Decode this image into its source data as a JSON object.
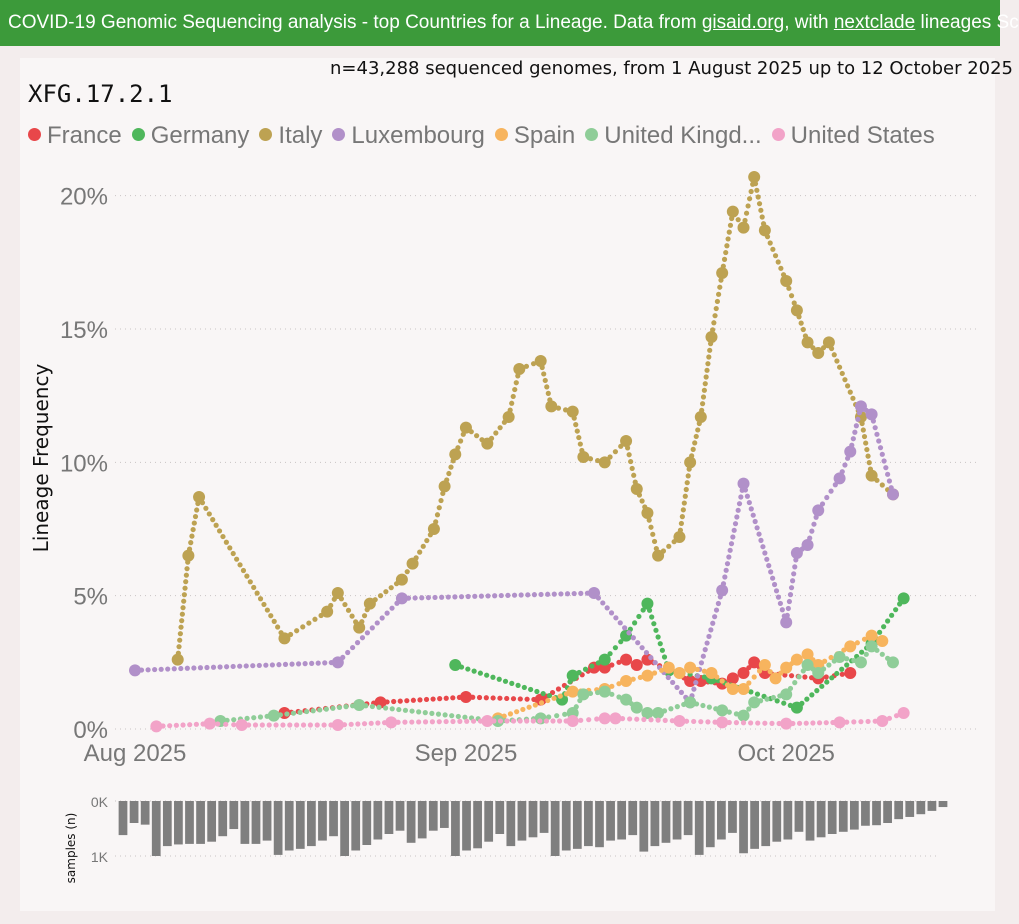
{
  "banner": {
    "pre": "COVID-19 Genomic Sequencing analysis - top Countries for a Lineage. Data from ",
    "link1": "gisaid.org",
    "mid": ", with ",
    "link2": "nextclade",
    "post": " lineages Sc"
  },
  "subtitle": "n=43,288 sequenced genomes, from 1 August 2025 up to 12 October 2025",
  "lineage": "XFG.17.2.1",
  "colors": {
    "France": "#e8474a",
    "Germany": "#4fb75c",
    "Italy": "#bda252",
    "Luxembourg": "#b190c9",
    "Spain": "#f7b45e",
    "United Kingdom": "#8fcd98",
    "United States": "#f2a3c8"
  },
  "legend": [
    {
      "label": "France",
      "color": "#e8474a"
    },
    {
      "label": "Germany",
      "color": "#4fb75c"
    },
    {
      "label": "Italy",
      "color": "#bda252"
    },
    {
      "label": "Luxembourg",
      "color": "#b190c9"
    },
    {
      "label": "Spain",
      "color": "#f7b45e"
    },
    {
      "label": "United Kingd...",
      "color": "#8fcd98"
    },
    {
      "label": "United States",
      "color": "#f2a3c8"
    }
  ],
  "chart_data": [
    {
      "type": "line",
      "title": "XFG.17.2.1",
      "xlabel": "",
      "ylabel": "Lineage Frequency",
      "x_unit": "days since 1 Aug 2025",
      "xlim": [
        0,
        74
      ],
      "ylim": [
        0,
        21
      ],
      "y_ticks": [
        0,
        5,
        10,
        15,
        20
      ],
      "y_tick_labels": [
        "0%",
        "5%",
        "10%",
        "15%",
        "20%"
      ],
      "x_ticks": [
        0,
        31,
        61
      ],
      "x_tick_labels": [
        "Aug 2025",
        "Sep 2025",
        "Oct 2025"
      ],
      "legend_position": "top",
      "series": [
        {
          "name": "France",
          "x": [
            14,
            23,
            31,
            38,
            43,
            44,
            46,
            47,
            48,
            52,
            53,
            55,
            56,
            57,
            58,
            59,
            64,
            67
          ],
          "y": [
            0.6,
            1.0,
            1.2,
            1.1,
            2.3,
            2.3,
            2.6,
            2.4,
            2.6,
            1.8,
            1.8,
            1.7,
            1.9,
            2.1,
            2.5,
            2.1,
            1.9,
            2.1
          ]
        },
        {
          "name": "Germany",
          "x": [
            30,
            40,
            41,
            44,
            46,
            48,
            50,
            54,
            62,
            69,
            72
          ],
          "y": [
            2.4,
            1.1,
            2.0,
            2.6,
            3.5,
            4.7,
            2.2,
            1.9,
            0.8,
            3.2,
            4.9
          ]
        },
        {
          "name": "Italy",
          "x": [
            4,
            5,
            6,
            14,
            18,
            19,
            21,
            22,
            25,
            26,
            28,
            29,
            30,
            31,
            33,
            35,
            36,
            38,
            39,
            41,
            42,
            44,
            46,
            47,
            48,
            49,
            51,
            52,
            53,
            54,
            55,
            56,
            57,
            58,
            59,
            61,
            62,
            63,
            64,
            65,
            68,
            69,
            71
          ],
          "y": [
            2.6,
            6.5,
            8.7,
            3.4,
            4.4,
            5.1,
            3.8,
            4.7,
            5.6,
            6.2,
            7.5,
            9.1,
            10.3,
            11.3,
            10.7,
            11.7,
            13.5,
            13.8,
            12.1,
            11.9,
            10.2,
            10.0,
            10.8,
            9.0,
            8.1,
            6.5,
            7.2,
            10.0,
            11.7,
            14.7,
            17.1,
            19.4,
            18.8,
            20.7,
            18.7,
            16.8,
            15.7,
            14.5,
            14.1,
            14.5,
            11.7,
            9.5,
            8.8
          ]
        },
        {
          "name": "Luxembourg",
          "x": [
            0,
            19,
            25,
            43,
            52,
            55,
            57,
            61,
            62,
            63,
            64,
            66,
            67,
            68,
            69,
            71
          ],
          "y": [
            2.2,
            2.5,
            4.9,
            5.1,
            1.0,
            5.2,
            9.2,
            4.0,
            6.6,
            6.9,
            8.2,
            9.4,
            10.4,
            12.1,
            11.8,
            8.8
          ]
        },
        {
          "name": "Spain",
          "x": [
            34,
            41,
            44,
            46,
            48,
            50,
            51,
            52,
            54,
            56,
            57,
            59,
            60,
            61,
            62,
            63,
            64,
            67,
            69,
            70
          ],
          "y": [
            0.4,
            1.4,
            1.5,
            1.8,
            2.0,
            2.3,
            2.1,
            2.3,
            2.1,
            1.5,
            1.5,
            2.4,
            1.9,
            2.3,
            2.6,
            2.8,
            2.4,
            3.1,
            3.5,
            3.3
          ]
        },
        {
          "name": "United Kingdom",
          "x": [
            8,
            13,
            21,
            34,
            38,
            41,
            42,
            44,
            46,
            47,
            48,
            49,
            52,
            55,
            57,
            58,
            61,
            63,
            64,
            66,
            68,
            69,
            71
          ],
          "y": [
            0.3,
            0.5,
            0.9,
            0.3,
            0.4,
            0.6,
            1.3,
            1.4,
            1.1,
            0.8,
            0.6,
            0.6,
            1.0,
            0.7,
            0.5,
            1.0,
            1.3,
            2.4,
            2.1,
            2.7,
            2.5,
            3.1,
            2.5
          ]
        },
        {
          "name": "United States",
          "x": [
            2,
            7,
            10,
            19,
            24,
            33,
            41,
            44,
            45,
            51,
            55,
            61,
            66,
            70,
            72
          ],
          "y": [
            0.1,
            0.2,
            0.15,
            0.15,
            0.25,
            0.3,
            0.3,
            0.4,
            0.4,
            0.3,
            0.25,
            0.2,
            0.25,
            0.3,
            0.6
          ]
        }
      ]
    },
    {
      "type": "bar",
      "ylabel": "samples (n)",
      "y_ticks": [
        0,
        1000
      ],
      "y_tick_labels": [
        "0K",
        "1K"
      ],
      "ylim": [
        0,
        1100
      ],
      "orientation": "downward",
      "x_unit": "days since 1 Aug 2025",
      "x": [
        0,
        1,
        2,
        3,
        4,
        5,
        6,
        7,
        8,
        9,
        10,
        11,
        12,
        13,
        14,
        15,
        16,
        17,
        18,
        19,
        20,
        21,
        22,
        23,
        24,
        25,
        26,
        27,
        28,
        29,
        30,
        31,
        32,
        33,
        34,
        35,
        36,
        37,
        38,
        39,
        40,
        41,
        42,
        43,
        44,
        45,
        46,
        47,
        48,
        49,
        50,
        51,
        52,
        53,
        54,
        55,
        56,
        57,
        58,
        59,
        60,
        61,
        62,
        63,
        64,
        65,
        66,
        67,
        68,
        69,
        70,
        71,
        72,
        73,
        74
      ],
      "values": [
        620,
        400,
        430,
        1000,
        820,
        790,
        780,
        780,
        740,
        640,
        510,
        780,
        780,
        720,
        980,
        900,
        870,
        820,
        720,
        640,
        1000,
        900,
        800,
        700,
        600,
        540,
        760,
        680,
        540,
        490,
        1000,
        900,
        860,
        740,
        600,
        820,
        720,
        660,
        580,
        1000,
        900,
        870,
        820,
        840,
        720,
        700,
        620,
        920,
        820,
        760,
        700,
        620,
        980,
        840,
        700,
        580,
        950,
        870,
        820,
        740,
        700,
        560,
        720,
        660,
        600,
        560,
        520,
        450,
        440,
        400,
        330,
        290,
        240,
        180,
        110
      ]
    }
  ]
}
